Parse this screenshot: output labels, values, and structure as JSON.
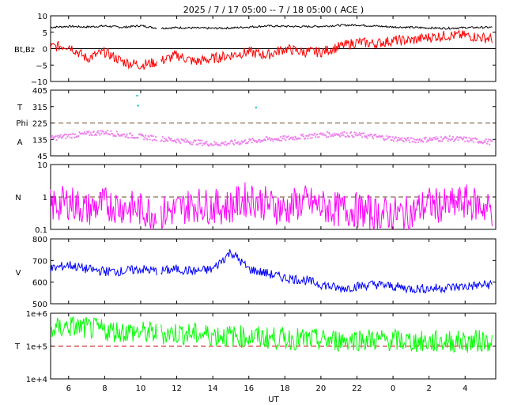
{
  "chart_data": [
    {
      "type": "line",
      "title": "2025 /  7 / 17   05:00 --  7 / 18   05:00 ( ACE )",
      "xlabel": "UT",
      "x_range_hours": [
        5,
        29.7
      ],
      "x_tick_labels": [
        "6",
        "8",
        "10",
        "12",
        "14",
        "16",
        "18",
        "20",
        "22",
        "0",
        "2",
        "4"
      ],
      "x_tick_hours": [
        6,
        8,
        10,
        12,
        14,
        16,
        18,
        20,
        22,
        24,
        26,
        28
      ],
      "data_gap_hours": [
        10.9,
        11.1
      ]
    },
    {
      "panel": "magnetic-field",
      "type": "line",
      "ylabel": "Bt,Bz",
      "ylim": [
        -10,
        10
      ],
      "y_ticks": [
        -10,
        -5,
        0,
        5,
        10
      ],
      "y_tick_labels": [
        "−10",
        "−5",
        "0",
        "5",
        "10"
      ],
      "reference_line": 0,
      "series": [
        {
          "name": "Bt",
          "color": "#000000",
          "hours": [
            5,
            6,
            7,
            8,
            9,
            10,
            11,
            12,
            13,
            14,
            15,
            16,
            17,
            18,
            19,
            20,
            21,
            22,
            23,
            24,
            25,
            26,
            27,
            28,
            29.5
          ],
          "values": [
            6.5,
            6.8,
            6.6,
            6.9,
            6.5,
            7.0,
            6.2,
            6.4,
            6.3,
            6.2,
            6.3,
            6.6,
            6.9,
            6.8,
            6.7,
            6.8,
            7.1,
            7.2,
            6.9,
            6.6,
            6.5,
            6.3,
            6.2,
            6.4,
            6.5
          ]
        },
        {
          "name": "Bz",
          "color": "#ff0000",
          "hours": [
            5,
            6,
            7,
            8,
            9,
            10,
            11,
            12,
            13,
            14,
            15,
            16,
            17,
            18,
            19,
            20,
            21,
            22,
            23,
            24,
            25,
            26,
            27,
            28,
            29.5
          ],
          "values": [
            0.5,
            1,
            -3,
            -1,
            -4,
            -5,
            -4,
            -2,
            -4,
            -3,
            -2,
            -1,
            -2,
            0,
            -1,
            -1,
            0.5,
            2,
            1.5,
            2.5,
            2.5,
            3.5,
            4,
            4,
            3
          ]
        }
      ]
    },
    {
      "panel": "field-angle",
      "type": "scatter",
      "ylabel_lines": [
        "T",
        "Phi",
        "A"
      ],
      "ylim": [
        45,
        405
      ],
      "y_ticks": [
        45,
        135,
        225,
        315,
        405
      ],
      "y_tick_labels": [
        "45",
        "135",
        "225",
        "315",
        "405"
      ],
      "reference_line": 225,
      "series": [
        {
          "name": "Phi",
          "color": "#ee82ee",
          "hours": [
            5,
            6,
            7,
            8,
            9,
            10,
            11,
            12,
            13,
            14,
            15,
            16,
            17,
            18,
            19,
            20,
            21,
            22,
            23,
            24,
            25,
            26,
            27,
            28,
            29.5
          ],
          "values": [
            140,
            155,
            165,
            175,
            160,
            150,
            140,
            130,
            120,
            110,
            115,
            125,
            135,
            140,
            150,
            160,
            165,
            160,
            150,
            140,
            130,
            135,
            140,
            135,
            120
          ]
        },
        {
          "name": "Phi (outliers)",
          "color": "#00c8c8",
          "hours": [
            9.8,
            9.85,
            16.4
          ],
          "values": [
            375,
            320,
            310
          ]
        }
      ]
    },
    {
      "panel": "density",
      "type": "line",
      "ylabel": "N",
      "yscale": "log",
      "ylim": [
        0.1,
        10
      ],
      "y_ticks": [
        0.1,
        1,
        10
      ],
      "y_tick_labels": [
        "0.1",
        "1",
        "10"
      ],
      "reference_line": 1,
      "series": [
        {
          "name": "N",
          "color": "#ff00ff",
          "hours": [
            5,
            6,
            7,
            8,
            9,
            10,
            11,
            12,
            13,
            14,
            15,
            16,
            17,
            18,
            19,
            20,
            21,
            22,
            23,
            24,
            25,
            26,
            27,
            28,
            29.5
          ],
          "values": [
            0.5,
            0.7,
            0.4,
            0.6,
            0.5,
            0.4,
            0.3,
            0.4,
            0.6,
            0.5,
            0.5,
            0.9,
            0.6,
            0.4,
            0.7,
            0.5,
            0.4,
            0.4,
            0.3,
            0.3,
            0.3,
            0.6,
            0.5,
            0.7,
            0.4
          ]
        }
      ]
    },
    {
      "panel": "speed",
      "type": "line",
      "ylabel": "V",
      "ylim": [
        500,
        800
      ],
      "y_ticks": [
        500,
        600,
        700,
        800
      ],
      "y_tick_labels": [
        "500",
        "600",
        "700",
        "800"
      ],
      "series": [
        {
          "name": "V",
          "color": "#0000ff",
          "hours": [
            5,
            6,
            7,
            8,
            9,
            10,
            11,
            12,
            13,
            14,
            15,
            16,
            17,
            18,
            19,
            20,
            21,
            22,
            23,
            24,
            25,
            26,
            27,
            28,
            29.5
          ],
          "values": [
            660,
            680,
            660,
            650,
            650,
            660,
            650,
            660,
            650,
            660,
            740,
            660,
            640,
            620,
            610,
            590,
            570,
            580,
            590,
            580,
            570,
            570,
            575,
            580,
            590
          ]
        }
      ]
    },
    {
      "panel": "temperature",
      "type": "line",
      "ylabel": "T",
      "yscale": "log",
      "ylim": [
        10000,
        1000000
      ],
      "y_ticks": [
        10000,
        100000,
        1000000
      ],
      "y_tick_labels": [
        "1e+4",
        "1e+5",
        "1e+6"
      ],
      "reference_line": 100000,
      "series": [
        {
          "name": "T",
          "color": "#00ff00",
          "hours": [
            5,
            6,
            7,
            8,
            9,
            10,
            11,
            12,
            13,
            14,
            15,
            16,
            17,
            18,
            19,
            20,
            21,
            22,
            23,
            24,
            25,
            26,
            27,
            28,
            29.5
          ],
          "values": [
            300000,
            400000,
            350000,
            300000,
            280000,
            260000,
            240000,
            250000,
            230000,
            220000,
            200000,
            190000,
            180000,
            170000,
            160000,
            150000,
            150000,
            160000,
            155000,
            150000,
            140000,
            130000,
            140000,
            135000,
            150000
          ]
        }
      ]
    }
  ]
}
